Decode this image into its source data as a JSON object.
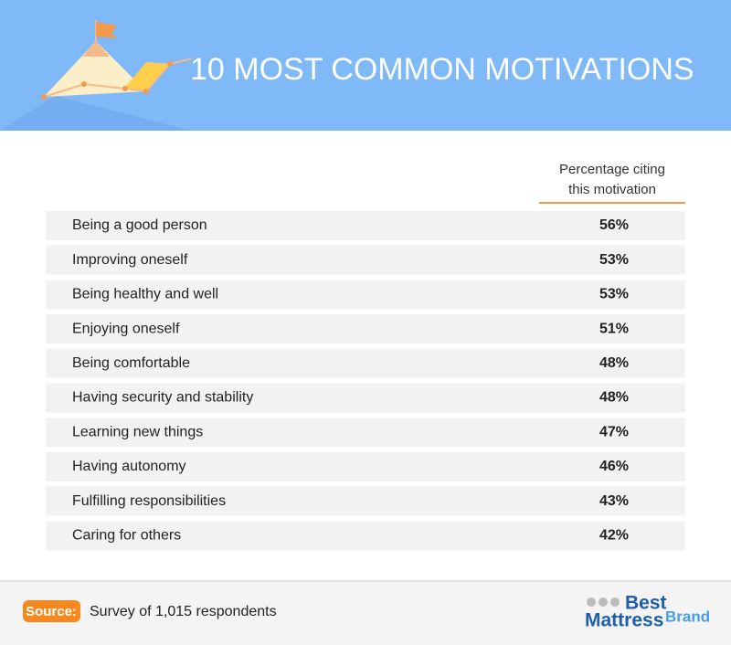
{
  "header": {
    "title": "10 MOST COMMON MOTIVATIONS"
  },
  "table": {
    "column_header": [
      "Percentage citing",
      "this motivation"
    ],
    "rows": [
      [
        "Being a good person",
        "56%"
      ],
      [
        "Improving oneself",
        "53%"
      ],
      [
        "Being healthy and well",
        "53%"
      ],
      [
        "Enjoying oneself",
        "51%"
      ],
      [
        "Being comfortable",
        "48%"
      ],
      [
        "Having security and stability",
        "48%"
      ],
      [
        "Learning new things",
        "47%"
      ],
      [
        "Having autonomy",
        "46%"
      ],
      [
        "Fulfilling responsibilities",
        "43%"
      ],
      [
        "Caring for others",
        "42%"
      ]
    ]
  },
  "footer": {
    "source_label": "Source:",
    "source_text": "Survey of 1,015 respondents",
    "brand": [
      "Best",
      "Mattress",
      "Brand"
    ]
  }
}
